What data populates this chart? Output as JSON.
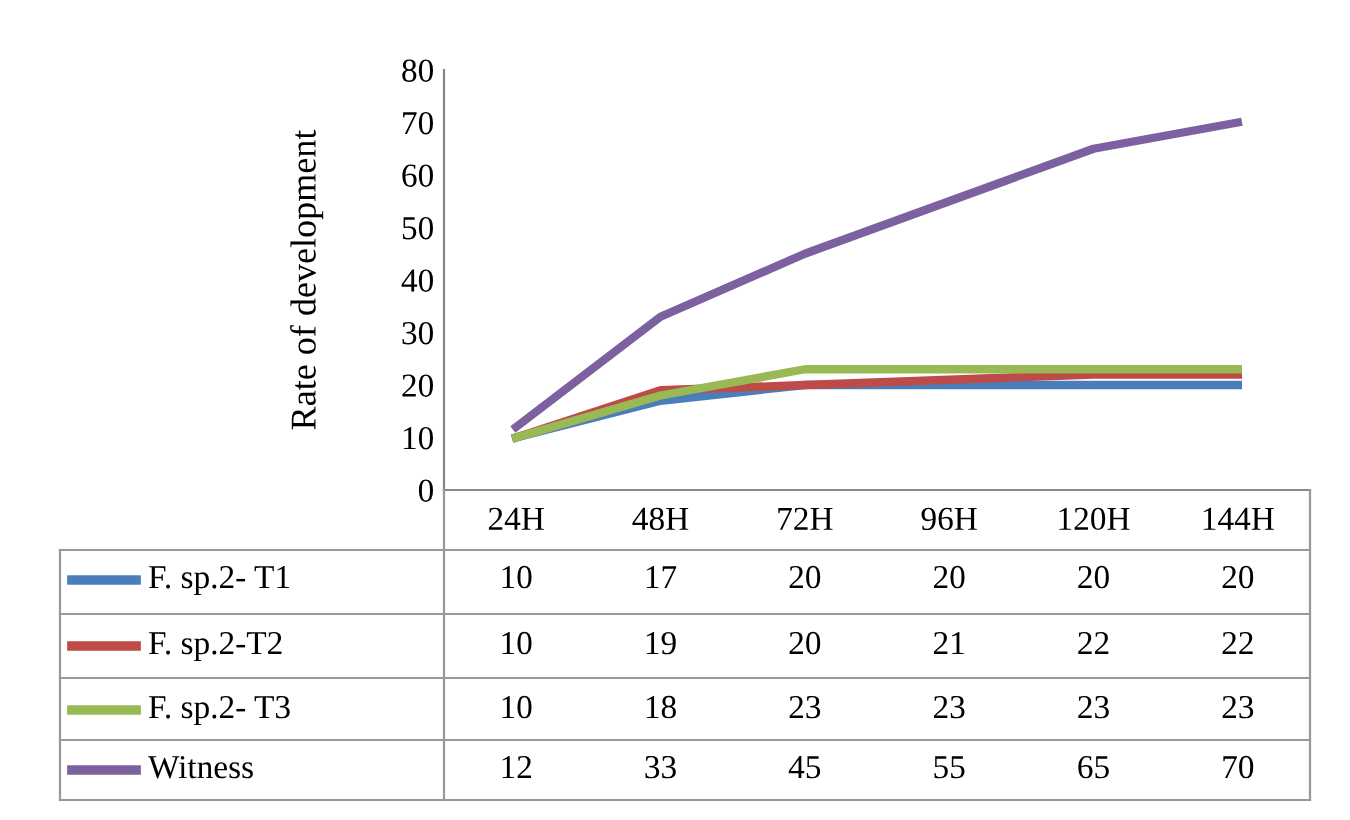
{
  "chart_data": {
    "type": "line",
    "ylabel": "Rate of development",
    "categories": [
      "24H",
      "48H",
      "72H",
      "96H",
      "120H",
      "144H"
    ],
    "series": [
      {
        "name": "F. sp.2- T1",
        "color": "#4a7ebb",
        "values": [
          10,
          17,
          20,
          20,
          20,
          20
        ]
      },
      {
        "name": "F. sp.2-T2",
        "color": "#be4b48",
        "values": [
          10,
          19,
          20,
          21,
          22,
          22
        ]
      },
      {
        "name": "F. sp.2- T3",
        "color": "#98b954",
        "values": [
          10,
          18,
          23,
          23,
          23,
          23
        ]
      },
      {
        "name": "Witness",
        "color": "#7d60a0",
        "values": [
          12,
          33,
          45,
          55,
          65,
          70
        ]
      }
    ],
    "ylim": [
      0,
      80
    ],
    "yticks": [
      0,
      10,
      20,
      30,
      40,
      50,
      60,
      70,
      80
    ],
    "data_labels": true,
    "grid": false,
    "legend": "bottom",
    "marker": "none",
    "line_style": "solid"
  }
}
